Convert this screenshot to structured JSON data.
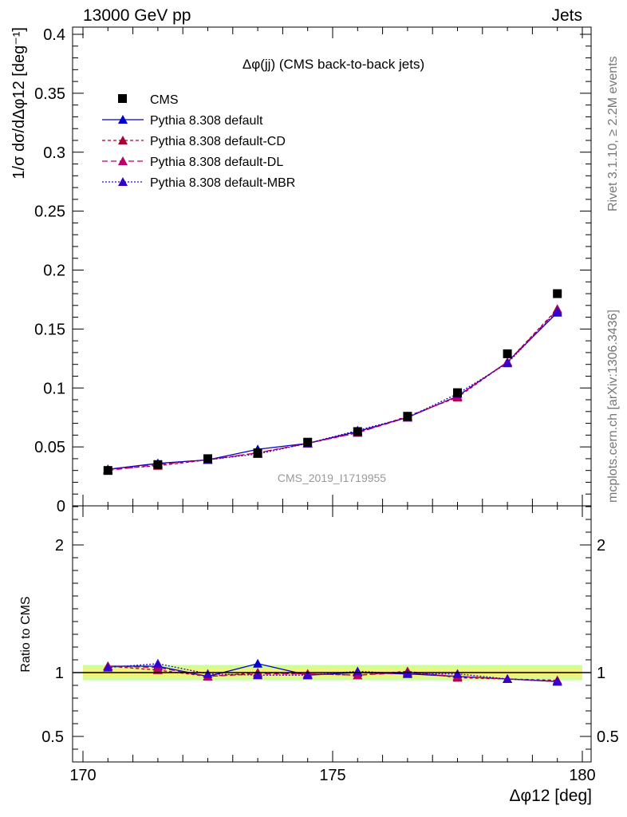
{
  "header": {
    "left": "13000 GeV pp",
    "right": "Jets"
  },
  "side_labels": {
    "rivet": "Rivet 3.1.10, ≥ 2.2M events",
    "mcplots": "mcplots.cern.ch [arXiv:1306.3436]"
  },
  "colors": {
    "data": "#000000",
    "default": "#0000cc",
    "default_CD": "#aa0033",
    "default_DL": "#bb0066",
    "default_MBR": "#3300cc",
    "band_inner": "#f2f27a",
    "band_outer": "#ccff99"
  },
  "chart_data": {
    "type": "scatter",
    "title": "Δφ(jj) (CMS back-to-back jets)",
    "watermark": "CMS_2019_I1719955",
    "ylabel": "1/σ dσ/dΔφ12 [deg⁻¹]",
    "xlabel": "Δφ12 [deg]",
    "ratio_ylabel": "Ratio to CMS",
    "xlim": [
      170,
      180
    ],
    "ylim": [
      0,
      0.4
    ],
    "ratio_ylim": [
      0.3,
      2.3
    ],
    "x_ticks": [
      "170",
      "175",
      "180"
    ],
    "y_ticks": [
      "0",
      "0.05",
      "0.1",
      "0.15",
      "0.2",
      "0.25",
      "0.3",
      "0.35",
      "0.4"
    ],
    "ratio_ticks": [
      "0.5",
      "1",
      "2"
    ],
    "legend": [
      "CMS",
      "Pythia 8.308 default",
      "Pythia 8.308 default-CD",
      "Pythia 8.308 default-DL",
      "Pythia 8.308 default-MBR"
    ],
    "legend_position": "top-left",
    "x": [
      170.5,
      171.5,
      172.5,
      173.5,
      174.5,
      175.5,
      176.5,
      177.5,
      178.5,
      179.5
    ],
    "data": {
      "name": "CMS",
      "values": [
        0.03,
        0.035,
        0.04,
        0.045,
        0.054,
        0.063,
        0.076,
        0.096,
        0.129,
        0.18
      ]
    },
    "series": [
      {
        "name": "Pythia 8.308 default",
        "values": [
          0.031,
          0.036,
          0.039,
          0.048,
          0.053,
          0.063,
          0.075,
          0.093,
          0.122,
          0.164
        ],
        "ratio": [
          1.05,
          1.05,
          0.97,
          1.07,
          0.98,
          1.0,
          0.99,
          0.97,
          0.95,
          0.93
        ]
      },
      {
        "name": "Pythia 8.308 default-CD",
        "values": [
          0.031,
          0.034,
          0.039,
          0.045,
          0.053,
          0.062,
          0.076,
          0.092,
          0.122,
          0.167
        ],
        "ratio": [
          1.05,
          1.02,
          0.97,
          1.0,
          0.99,
          0.98,
          1.01,
          0.96,
          0.95,
          0.94
        ]
      },
      {
        "name": "Pythia 8.308 default-DL",
        "values": [
          0.03,
          0.035,
          0.039,
          0.045,
          0.053,
          0.062,
          0.075,
          0.093,
          0.122,
          0.166
        ],
        "ratio": [
          1.05,
          1.04,
          0.97,
          0.99,
          0.99,
          0.98,
          1.0,
          0.97,
          0.95,
          0.93
        ]
      },
      {
        "name": "Pythia 8.308 default-MBR",
        "values": [
          0.031,
          0.036,
          0.039,
          0.044,
          0.053,
          0.064,
          0.075,
          0.095,
          0.121,
          0.165
        ],
        "ratio": [
          1.04,
          1.07,
          0.99,
          0.98,
          0.98,
          1.01,
          0.99,
          0.99,
          0.95,
          0.93
        ]
      }
    ]
  }
}
